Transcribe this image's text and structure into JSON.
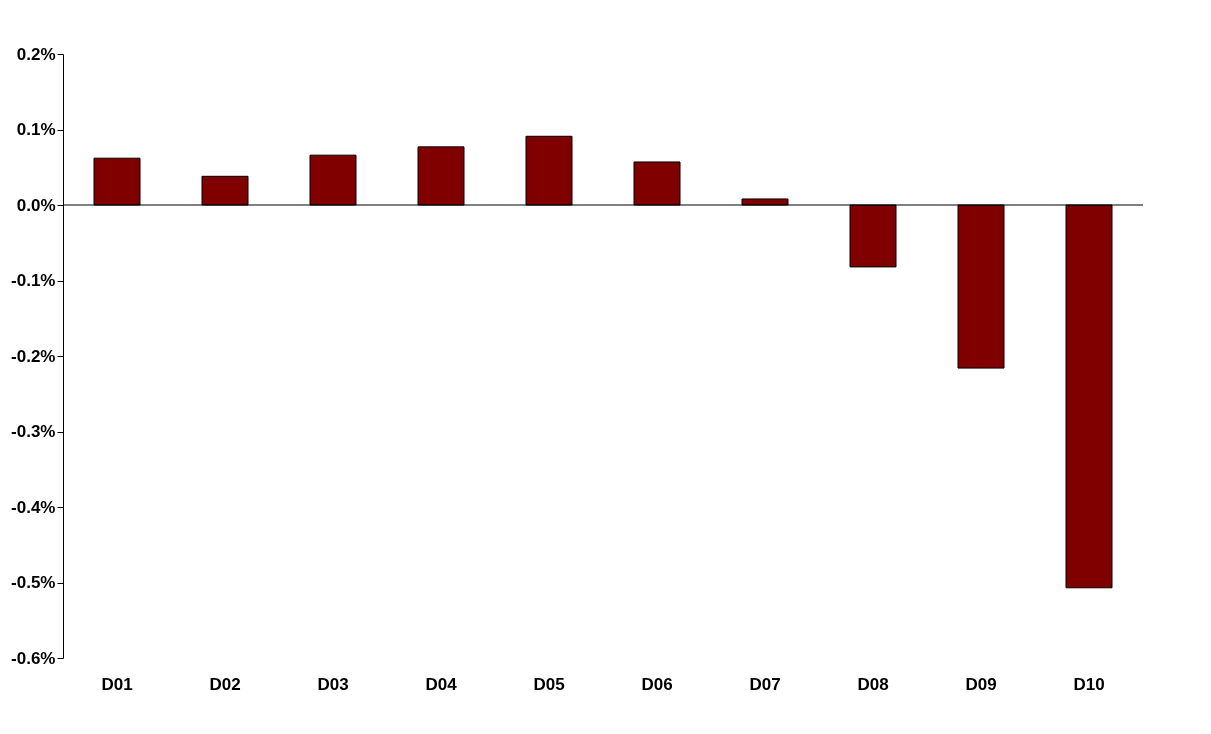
{
  "chart_data": {
    "type": "bar",
    "categories": [
      "D01",
      "D02",
      "D03",
      "D04",
      "D05",
      "D06",
      "D07",
      "D08",
      "D09",
      "D10"
    ],
    "values": [
      0.062,
      0.038,
      0.066,
      0.077,
      0.091,
      0.057,
      0.008,
      -0.082,
      -0.216,
      -0.507
    ],
    "color": "#800000",
    "ylim": [
      -0.6,
      0.2
    ],
    "yticks": [
      {
        "value": -0.6,
        "label": "-0.6%"
      },
      {
        "value": -0.5,
        "label": "-0.5%"
      },
      {
        "value": -0.4,
        "label": "-0.4%"
      },
      {
        "value": -0.3,
        "label": "-0.3%"
      },
      {
        "value": -0.2,
        "label": "-0.2%"
      },
      {
        "value": -0.1,
        "label": "-0.1%"
      },
      {
        "value": 0.0,
        "label": "0.0%"
      },
      {
        "value": 0.1,
        "label": "0.1%"
      },
      {
        "value": 0.2,
        "label": "0.2%"
      }
    ],
    "ref_lines": [
      {
        "axis": "y",
        "value": 0,
        "color": "#000000",
        "line_style": "solid"
      }
    ],
    "grid": false
  }
}
